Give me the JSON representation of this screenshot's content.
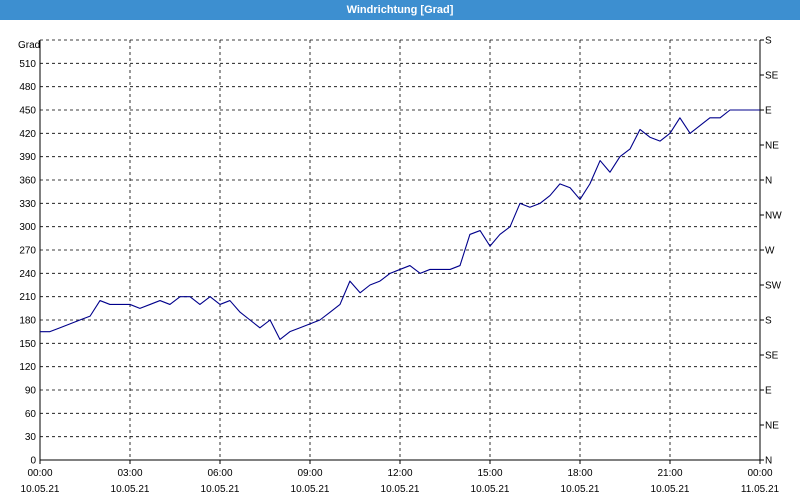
{
  "window": {
    "title": "Windrichtung [Grad]"
  },
  "chart_data": {
    "type": "line",
    "title": "Windrichtung [Grad]",
    "ylabel": "Grad",
    "xlabel": "",
    "ylim": [
      0,
      540
    ],
    "y_ticks": [
      0,
      30,
      60,
      90,
      120,
      150,
      180,
      210,
      240,
      270,
      300,
      330,
      360,
      390,
      420,
      450,
      480,
      510
    ],
    "right_axis_labels": [
      "N",
      "NE",
      "E",
      "SE",
      "S",
      "SW",
      "W",
      "NW",
      "N",
      "NE",
      "E",
      "SE",
      "S"
    ],
    "x_ticks": [
      {
        "time": "00:00",
        "date": "10.05.21"
      },
      {
        "time": "03:00",
        "date": "10.05.21"
      },
      {
        "time": "06:00",
        "date": "10.05.21"
      },
      {
        "time": "09:00",
        "date": "10.05.21"
      },
      {
        "time": "12:00",
        "date": "10.05.21"
      },
      {
        "time": "15:00",
        "date": "10.05.21"
      },
      {
        "time": "18:00",
        "date": "10.05.21"
      },
      {
        "time": "21:00",
        "date": "10.05.21"
      },
      {
        "time": "00:00",
        "date": "11.05.21"
      }
    ],
    "grid": true,
    "colors": {
      "line": "#00008b",
      "grid": "#000000",
      "titlebar": "#3d8fd0"
    },
    "series": [
      {
        "x_hours": [
          0,
          0.33,
          0.67,
          1,
          1.33,
          1.67,
          2,
          2.33,
          2.67,
          3,
          3.33,
          3.67,
          4,
          4.33,
          4.67,
          5,
          5.33,
          5.67,
          6,
          6.33,
          6.67,
          7,
          7.33,
          7.67,
          8,
          8.33,
          8.67,
          9,
          9.33,
          9.67,
          10,
          10.33,
          10.67,
          11,
          11.33,
          11.67,
          12,
          12.33,
          12.67,
          13,
          13.33,
          13.67,
          14,
          14.33,
          14.67,
          15,
          15.33,
          15.67,
          16,
          16.33,
          16.67,
          17,
          17.33,
          17.67,
          18,
          18.33,
          18.67,
          19,
          19.33,
          19.67,
          20,
          20.33,
          20.67,
          21,
          21.33,
          21.67,
          22,
          22.33,
          22.67,
          23,
          23.33,
          23.67,
          24
        ],
        "values": [
          165,
          165,
          170,
          175,
          180,
          185,
          205,
          200,
          200,
          200,
          195,
          200,
          205,
          200,
          210,
          210,
          200,
          210,
          200,
          205,
          190,
          180,
          170,
          180,
          155,
          165,
          170,
          175,
          180,
          190,
          200,
          230,
          215,
          225,
          230,
          240,
          245,
          250,
          240,
          245,
          245,
          245,
          250,
          290,
          295,
          275,
          290,
          300,
          330,
          325,
          330,
          340,
          355,
          350,
          335,
          355,
          385,
          370,
          390,
          400,
          425,
          415,
          410,
          420,
          440,
          420,
          430,
          440,
          440,
          450,
          450,
          450,
          450
        ]
      }
    ]
  }
}
